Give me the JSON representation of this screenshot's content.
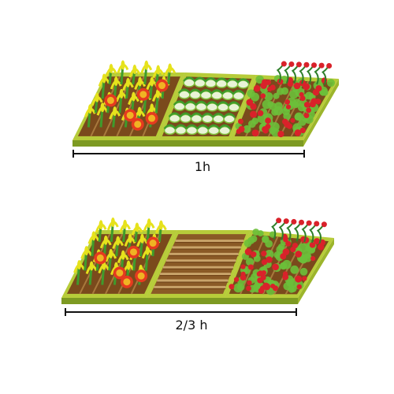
{
  "diagram": {
    "gardens": [
      {
        "name": "full-garden",
        "beds": [
          "corn-sunflower",
          "cabbage",
          "tomato"
        ],
        "duration_label": "1h"
      },
      {
        "name": "partial-garden",
        "beds": [
          "corn-sunflower",
          "soil",
          "tomato"
        ],
        "duration_label": "2/3 h"
      }
    ],
    "colors": {
      "frame": "#b7cc3a",
      "frame_dark": "#7d9a22",
      "soil": "#7a4a1c",
      "soil_furrow": "#a8793d",
      "corn": "#e6e21c",
      "stem": "#3f9b2c",
      "sunflower_petal": "#e53a1f",
      "sunflower_center": "#f0b323",
      "cabbage_light": "#e9f3d6",
      "cabbage_dark": "#7fbf3a",
      "tomato": "#d9222a",
      "tomato_leaf": "#6cbf3a"
    }
  }
}
